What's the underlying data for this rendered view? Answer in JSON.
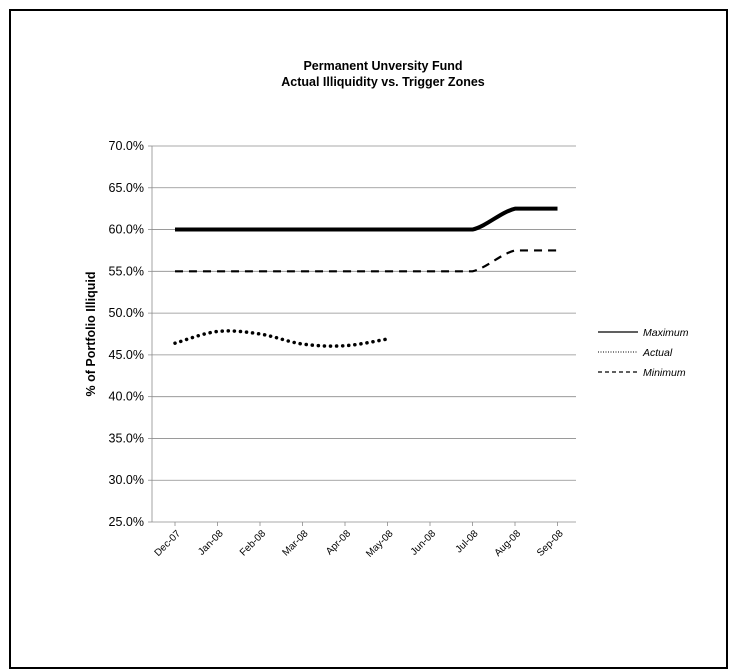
{
  "chart_data": {
    "type": "line",
    "title": "Permanent Unversity Fund",
    "subtitle": "Actual Illiquidity vs. Trigger Zones",
    "xlabel": "",
    "ylabel": "% of Portfolio Illiquid",
    "ylim": [
      25.0,
      70.0
    ],
    "yticks": [
      "25.0%",
      "30.0%",
      "35.0%",
      "40.0%",
      "45.0%",
      "50.0%",
      "55.0%",
      "60.0%",
      "65.0%",
      "70.0%"
    ],
    "ytick_values": [
      25,
      30,
      35,
      40,
      45,
      50,
      55,
      60,
      65,
      70
    ],
    "categories": [
      "Dec-07",
      "Jan-08",
      "Feb-08",
      "Mar-08",
      "Apr-08",
      "May-08",
      "Jun-08",
      "Jul-08",
      "Aug-08",
      "Sep-08"
    ],
    "grid": true,
    "legend_position": "right",
    "series": [
      {
        "name": "Maximum",
        "values": [
          60.0,
          60.0,
          60.0,
          60.0,
          60.0,
          60.0,
          60.0,
          60.0,
          62.5,
          62.5
        ],
        "style": "solid",
        "color": "#000000"
      },
      {
        "name": "Actual",
        "values": [
          46.4,
          47.8,
          47.5,
          46.3,
          46.1,
          46.9,
          null,
          null,
          null,
          null
        ],
        "style": "dotted",
        "color": "#000000"
      },
      {
        "name": "Minimum",
        "values": [
          55.0,
          55.0,
          55.0,
          55.0,
          55.0,
          55.0,
          55.0,
          55.0,
          57.5,
          57.5
        ],
        "style": "dashed",
        "color": "#000000"
      }
    ]
  }
}
